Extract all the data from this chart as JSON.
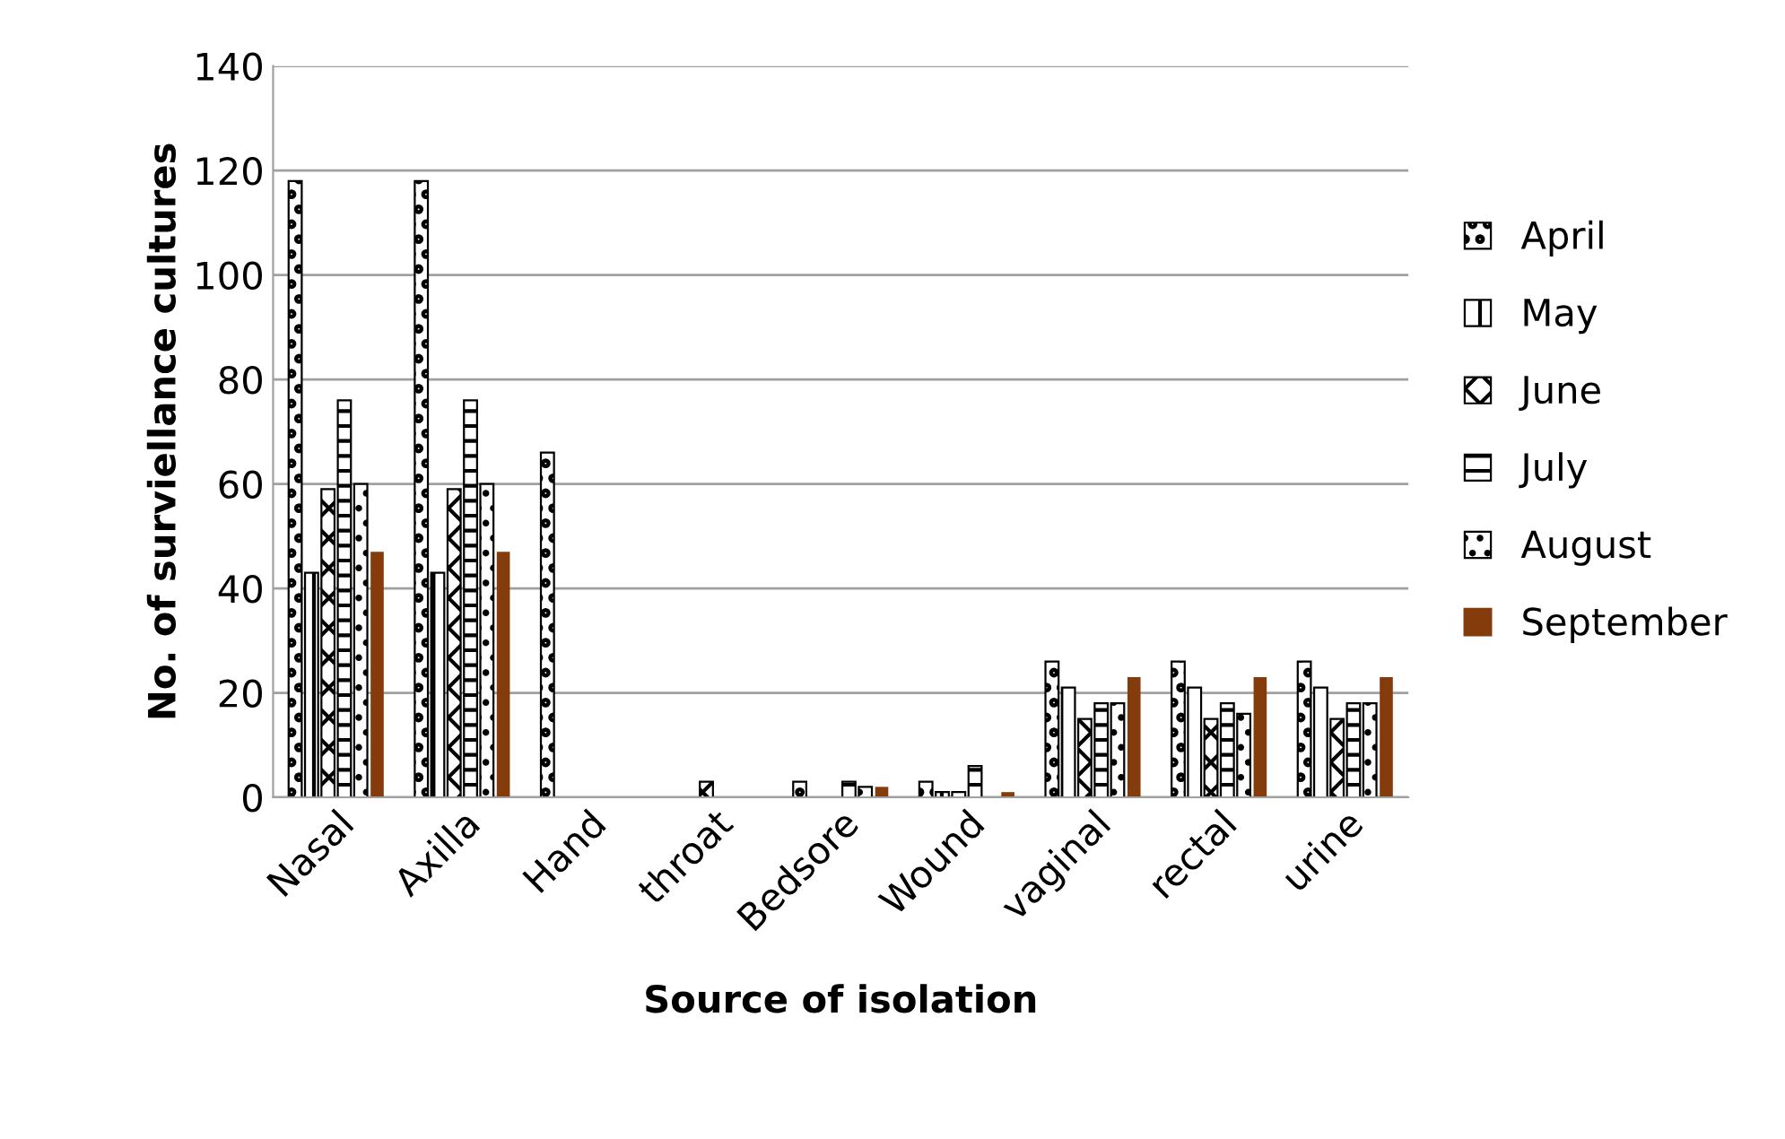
{
  "chart_data": {
    "type": "bar",
    "xlabel": "Source of isolation",
    "ylabel": "No. of surviellance cultures",
    "categories": [
      "Nasal",
      "Axilla",
      "Hand",
      "throat",
      "Bedsore",
      "Wound",
      "vaginal",
      "rectal",
      "urine"
    ],
    "series": [
      {
        "name": "April",
        "color": "#000000",
        "values": [
          118,
          118,
          66,
          0,
          3,
          3,
          26,
          26,
          26
        ]
      },
      {
        "name": "May",
        "color": "#000000",
        "values": [
          43,
          43,
          0,
          0,
          0,
          1,
          21,
          21,
          21
        ]
      },
      {
        "name": "June",
        "color": "#000000",
        "values": [
          59,
          59,
          0,
          3,
          0,
          1,
          15,
          15,
          15
        ]
      },
      {
        "name": "July",
        "color": "#000000",
        "values": [
          76,
          76,
          0,
          0,
          3,
          6,
          18,
          18,
          18
        ]
      },
      {
        "name": "August",
        "color": "#000000",
        "values": [
          60,
          60,
          0,
          0,
          2,
          0,
          18,
          16,
          18
        ]
      },
      {
        "name": "September",
        "color": "#843c0c",
        "values": [
          47,
          47,
          0,
          0,
          2,
          1,
          23,
          23,
          23
        ]
      }
    ],
    "ylim": [
      0,
      140
    ],
    "yticks": [
      0,
      20,
      40,
      60,
      80,
      100,
      120,
      140
    ],
    "grid": "y",
    "legend": "right"
  }
}
